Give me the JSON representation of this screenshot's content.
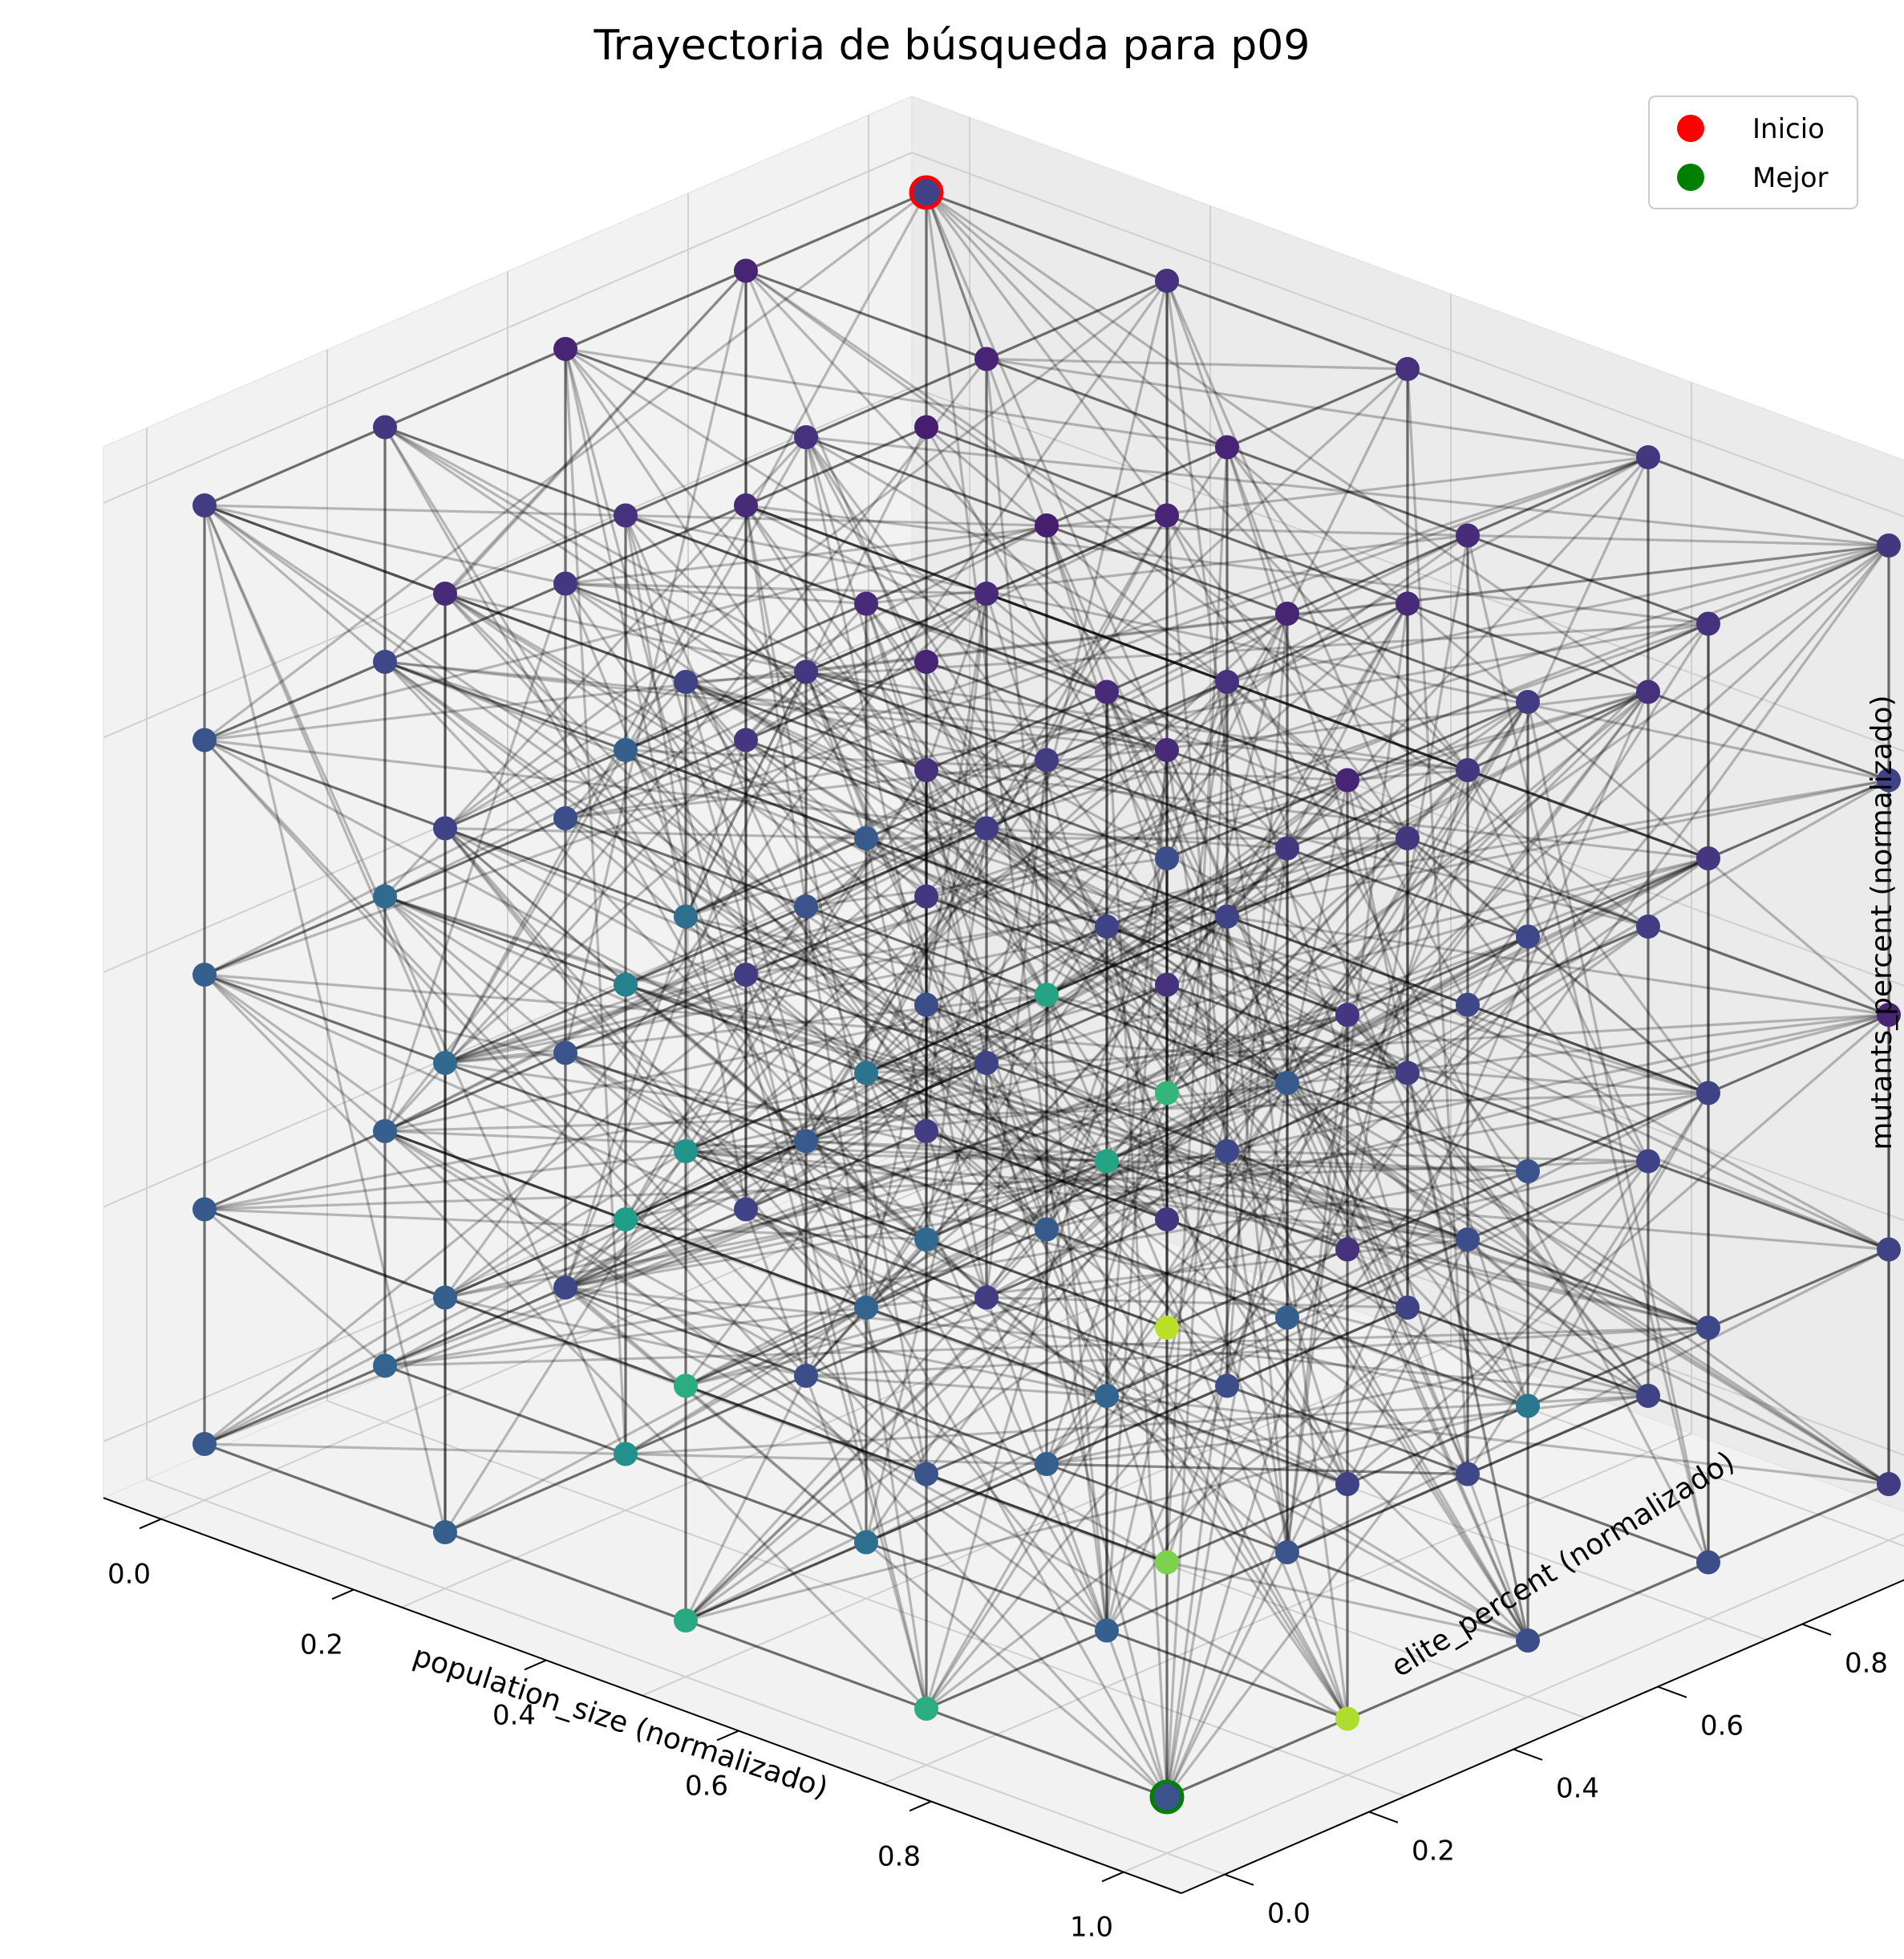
{
  "chart_data": {
    "type": "scatter",
    "projection": "3d",
    "title": "Trayectoria de búsqueda para p09",
    "xlabel": "population_size (normalizado)",
    "ylabel": "elite_percent (normalizado)",
    "zlabel": "mutants_percent (normalizado)",
    "xlim": [
      0,
      1
    ],
    "ylim": [
      0,
      1
    ],
    "zlim": [
      0,
      1
    ],
    "xticks": [
      "0.0",
      "0.2",
      "0.4",
      "0.6",
      "0.8",
      "1.0"
    ],
    "yticks": [
      "0.0",
      "0.2",
      "0.4",
      "0.6",
      "0.8",
      "1.0"
    ],
    "zticks": [
      "0.0",
      "0.2",
      "0.4",
      "0.6",
      "0.8",
      "1.0"
    ],
    "grid": true,
    "grid_levels": [
      0,
      0.25,
      0.5,
      0.75,
      1
    ],
    "colormap": "viridis",
    "edge_color": "#000000",
    "legend": {
      "position": "top-right",
      "entries": [
        {
          "label": "Inicio",
          "color": "#ff0000"
        },
        {
          "label": "Mejor",
          "color": "#008000"
        }
      ]
    },
    "start_point": {
      "x": 0,
      "y": 1,
      "z": 1
    },
    "best_point": {
      "x": 1,
      "y": 0,
      "z": 0
    },
    "points": [
      {
        "x": 0,
        "y": 0,
        "z": 0,
        "v": 0.28
      },
      {
        "x": 0,
        "y": 0,
        "z": 0.25,
        "v": 0.28
      },
      {
        "x": 0,
        "y": 0,
        "z": 0.5,
        "v": 0.3
      },
      {
        "x": 0,
        "y": 0,
        "z": 0.75,
        "v": 0.26
      },
      {
        "x": 0,
        "y": 0,
        "z": 1,
        "v": 0.18
      },
      {
        "x": 0,
        "y": 0.25,
        "z": 0,
        "v": 0.32
      },
      {
        "x": 0,
        "y": 0.25,
        "z": 0.25,
        "v": 0.3
      },
      {
        "x": 0,
        "y": 0.25,
        "z": 0.5,
        "v": 0.34
      },
      {
        "x": 0,
        "y": 0.25,
        "z": 0.75,
        "v": 0.22
      },
      {
        "x": 0,
        "y": 0.25,
        "z": 1,
        "v": 0.16
      },
      {
        "x": 0,
        "y": 0.5,
        "z": 0,
        "v": 0.22
      },
      {
        "x": 0,
        "y": 0.5,
        "z": 0.25,
        "v": 0.26
      },
      {
        "x": 0,
        "y": 0.5,
        "z": 0.5,
        "v": 0.24
      },
      {
        "x": 0,
        "y": 0.5,
        "z": 0.75,
        "v": 0.16
      },
      {
        "x": 0,
        "y": 0.5,
        "z": 1,
        "v": 0.1
      },
      {
        "x": 0,
        "y": 0.75,
        "z": 0,
        "v": 0.2
      },
      {
        "x": 0,
        "y": 0.75,
        "z": 0.25,
        "v": 0.18
      },
      {
        "x": 0,
        "y": 0.75,
        "z": 0.5,
        "v": 0.16
      },
      {
        "x": 0,
        "y": 0.75,
        "z": 0.75,
        "v": 0.12
      },
      {
        "x": 0,
        "y": 0.75,
        "z": 1,
        "v": 0.1
      },
      {
        "x": 0,
        "y": 1,
        "z": 0,
        "v": 0.18
      },
      {
        "x": 0,
        "y": 1,
        "z": 0.25,
        "v": 0.16
      },
      {
        "x": 0,
        "y": 1,
        "z": 0.5,
        "v": 0.1
      },
      {
        "x": 0,
        "y": 1,
        "z": 0.75,
        "v": 0.08
      },
      {
        "x": 0,
        "y": 1,
        "z": 1,
        "v": 0.2
      },
      {
        "x": 0.25,
        "y": 0,
        "z": 0,
        "v": 0.3
      },
      {
        "x": 0.25,
        "y": 0,
        "z": 0.25,
        "v": 0.3
      },
      {
        "x": 0.25,
        "y": 0,
        "z": 0.5,
        "v": 0.34
      },
      {
        "x": 0.25,
        "y": 0,
        "z": 0.75,
        "v": 0.2
      },
      {
        "x": 0.25,
        "y": 0,
        "z": 1,
        "v": 0.12
      },
      {
        "x": 0.25,
        "y": 0.25,
        "z": 0,
        "v": 0.5
      },
      {
        "x": 0.25,
        "y": 0.25,
        "z": 0.25,
        "v": 0.56
      },
      {
        "x": 0.25,
        "y": 0.25,
        "z": 0.5,
        "v": 0.44
      },
      {
        "x": 0.25,
        "y": 0.25,
        "z": 0.75,
        "v": 0.3
      },
      {
        "x": 0.25,
        "y": 0.25,
        "z": 1,
        "v": 0.14
      },
      {
        "x": 0.25,
        "y": 0.5,
        "z": 0,
        "v": 0.24
      },
      {
        "x": 0.25,
        "y": 0.5,
        "z": 0.25,
        "v": 0.28
      },
      {
        "x": 0.25,
        "y": 0.5,
        "z": 0.5,
        "v": 0.26
      },
      {
        "x": 0.25,
        "y": 0.5,
        "z": 0.75,
        "v": 0.16
      },
      {
        "x": 0.25,
        "y": 0.5,
        "z": 1,
        "v": 0.14
      },
      {
        "x": 0.25,
        "y": 0.75,
        "z": 0,
        "v": 0.18
      },
      {
        "x": 0.25,
        "y": 0.75,
        "z": 0.25,
        "v": 0.2
      },
      {
        "x": 0.25,
        "y": 0.75,
        "z": 0.5,
        "v": 0.18
      },
      {
        "x": 0.25,
        "y": 0.75,
        "z": 0.75,
        "v": 0.12
      },
      {
        "x": 0.25,
        "y": 0.75,
        "z": 1,
        "v": 0.1
      },
      {
        "x": 0.25,
        "y": 1,
        "z": 0,
        "v": 0.16
      },
      {
        "x": 0.25,
        "y": 1,
        "z": 0.25,
        "v": 0.14
      },
      {
        "x": 0.25,
        "y": 1,
        "z": 0.5,
        "v": 0.12
      },
      {
        "x": 0.25,
        "y": 1,
        "z": 0.75,
        "v": 0.1
      },
      {
        "x": 0.25,
        "y": 1,
        "z": 1,
        "v": 0.14
      },
      {
        "x": 0.5,
        "y": 0,
        "z": 0,
        "v": 0.6
      },
      {
        "x": 0.5,
        "y": 0,
        "z": 0.25,
        "v": 0.62
      },
      {
        "x": 0.5,
        "y": 0,
        "z": 0.5,
        "v": 0.52
      },
      {
        "x": 0.5,
        "y": 0,
        "z": 0.75,
        "v": 0.36
      },
      {
        "x": 0.5,
        "y": 0,
        "z": 1,
        "v": 0.2
      },
      {
        "x": 0.5,
        "y": 0.25,
        "z": 0,
        "v": 0.36
      },
      {
        "x": 0.5,
        "y": 0.25,
        "z": 0.25,
        "v": 0.32
      },
      {
        "x": 0.5,
        "y": 0.25,
        "z": 0.5,
        "v": 0.38
      },
      {
        "x": 0.5,
        "y": 0.25,
        "z": 0.75,
        "v": 0.28
      },
      {
        "x": 0.5,
        "y": 0.25,
        "z": 1,
        "v": 0.12
      },
      {
        "x": 0.5,
        "y": 0.5,
        "z": 0,
        "v": 0.3
      },
      {
        "x": 0.5,
        "y": 0.5,
        "z": 0.25,
        "v": 0.28
      },
      {
        "x": 0.5,
        "y": 0.5,
        "z": 0.5,
        "v": 0.58
      },
      {
        "x": 0.5,
        "y": 0.5,
        "z": 0.75,
        "v": 0.18
      },
      {
        "x": 0.5,
        "y": 0.5,
        "z": 1,
        "v": 0.08
      },
      {
        "x": 0.5,
        "y": 0.75,
        "z": 0,
        "v": 0.24
      },
      {
        "x": 0.5,
        "y": 0.75,
        "z": 0.25,
        "v": 0.22
      },
      {
        "x": 0.5,
        "y": 0.75,
        "z": 0.5,
        "v": 0.2
      },
      {
        "x": 0.5,
        "y": 0.75,
        "z": 0.75,
        "v": 0.14
      },
      {
        "x": 0.5,
        "y": 0.75,
        "z": 1,
        "v": 0.1
      },
      {
        "x": 0.5,
        "y": 1,
        "z": 0,
        "v": 0.2
      },
      {
        "x": 0.5,
        "y": 1,
        "z": 0.25,
        "v": 0.18
      },
      {
        "x": 0.5,
        "y": 1,
        "z": 0.5,
        "v": 0.16
      },
      {
        "x": 0.5,
        "y": 1,
        "z": 0.75,
        "v": 0.12
      },
      {
        "x": 0.5,
        "y": 1,
        "z": 1,
        "v": 0.14
      },
      {
        "x": 0.75,
        "y": 0,
        "z": 0,
        "v": 0.62
      },
      {
        "x": 0.75,
        "y": 0,
        "z": 0.25,
        "v": 0.26
      },
      {
        "x": 0.75,
        "y": 0,
        "z": 0.5,
        "v": 0.34
      },
      {
        "x": 0.75,
        "y": 0,
        "z": 0.75,
        "v": 0.24
      },
      {
        "x": 0.75,
        "y": 0,
        "z": 1,
        "v": 0.14
      },
      {
        "x": 0.75,
        "y": 0.25,
        "z": 0,
        "v": 0.3
      },
      {
        "x": 0.75,
        "y": 0.25,
        "z": 0.25,
        "v": 0.32
      },
      {
        "x": 0.75,
        "y": 0.25,
        "z": 0.5,
        "v": 0.58
      },
      {
        "x": 0.75,
        "y": 0.25,
        "z": 0.75,
        "v": 0.2
      },
      {
        "x": 0.75,
        "y": 0.25,
        "z": 1,
        "v": 0.12
      },
      {
        "x": 0.75,
        "y": 0.5,
        "z": 0,
        "v": 0.26
      },
      {
        "x": 0.75,
        "y": 0.5,
        "z": 0.25,
        "v": 0.3
      },
      {
        "x": 0.75,
        "y": 0.5,
        "z": 0.5,
        "v": 0.28
      },
      {
        "x": 0.75,
        "y": 0.5,
        "z": 0.75,
        "v": 0.16
      },
      {
        "x": 0.75,
        "y": 0.5,
        "z": 1,
        "v": 0.1
      },
      {
        "x": 0.75,
        "y": 0.75,
        "z": 0,
        "v": 0.22
      },
      {
        "x": 0.75,
        "y": 0.75,
        "z": 0.25,
        "v": 0.24
      },
      {
        "x": 0.75,
        "y": 0.75,
        "z": 0.5,
        "v": 0.22
      },
      {
        "x": 0.75,
        "y": 0.75,
        "z": 0.75,
        "v": 0.16
      },
      {
        "x": 0.75,
        "y": 0.75,
        "z": 1,
        "v": 0.12
      },
      {
        "x": 0.75,
        "y": 1,
        "z": 0,
        "v": 0.2
      },
      {
        "x": 0.75,
        "y": 1,
        "z": 0.25,
        "v": 0.2
      },
      {
        "x": 0.75,
        "y": 1,
        "z": 0.5,
        "v": 0.18
      },
      {
        "x": 0.75,
        "y": 1,
        "z": 0.75,
        "v": 0.14
      },
      {
        "x": 0.75,
        "y": 1,
        "z": 1,
        "v": 0.16
      },
      {
        "x": 1,
        "y": 0,
        "z": 0,
        "v": 0.26
      },
      {
        "x": 1,
        "y": 0,
        "z": 0.25,
        "v": 0.8
      },
      {
        "x": 1,
        "y": 0,
        "z": 0.5,
        "v": 0.9
      },
      {
        "x": 1,
        "y": 0,
        "z": 0.75,
        "v": 0.66
      },
      {
        "x": 1,
        "y": 0,
        "z": 1,
        "v": 0.24
      },
      {
        "x": 1,
        "y": 0.25,
        "z": 0,
        "v": 0.88
      },
      {
        "x": 1,
        "y": 0.25,
        "z": 0.25,
        "v": 0.2
      },
      {
        "x": 1,
        "y": 0.25,
        "z": 0.5,
        "v": 0.14
      },
      {
        "x": 1,
        "y": 0.25,
        "z": 0.75,
        "v": 0.16
      },
      {
        "x": 1,
        "y": 0.25,
        "z": 1,
        "v": 0.1
      },
      {
        "x": 1,
        "y": 0.5,
        "z": 0,
        "v": 0.24
      },
      {
        "x": 1,
        "y": 0.5,
        "z": 0.25,
        "v": 0.4
      },
      {
        "x": 1,
        "y": 0.5,
        "z": 0.5,
        "v": 0.26
      },
      {
        "x": 1,
        "y": 0.5,
        "z": 0.75,
        "v": 0.22
      },
      {
        "x": 1,
        "y": 0.5,
        "z": 1,
        "v": 0.18
      },
      {
        "x": 1,
        "y": 0.75,
        "z": 0,
        "v": 0.24
      },
      {
        "x": 1,
        "y": 0.75,
        "z": 0.25,
        "v": 0.22
      },
      {
        "x": 1,
        "y": 0.75,
        "z": 0.5,
        "v": 0.2
      },
      {
        "x": 1,
        "y": 0.75,
        "z": 0.75,
        "v": 0.16
      },
      {
        "x": 1,
        "y": 0.75,
        "z": 1,
        "v": 0.14
      },
      {
        "x": 1,
        "y": 1,
        "z": 0,
        "v": 0.18
      },
      {
        "x": 1,
        "y": 1,
        "z": 0.25,
        "v": 0.2
      },
      {
        "x": 1,
        "y": 1,
        "z": 0.5,
        "v": 0.1
      },
      {
        "x": 1,
        "y": 1,
        "z": 0.75,
        "v": 0.2
      },
      {
        "x": 1,
        "y": 1,
        "z": 1,
        "v": 0.16
      }
    ]
  }
}
